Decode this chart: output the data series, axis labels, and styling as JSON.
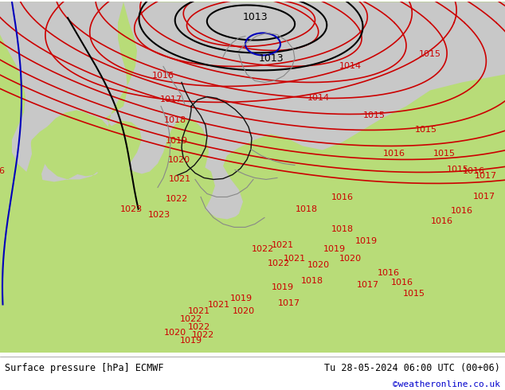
{
  "title_left": "Surface pressure [hPa] ECMWF",
  "title_right": "Tu 28-05-2024 06:00 UTC (00+06)",
  "copyright": "©weatheronline.co.uk",
  "copyright_color": "#0000cc",
  "land_color": "#b8dc78",
  "sea_color": "#c8c8c8",
  "contour_red": "#cc0000",
  "contour_black": "#000000",
  "contour_blue": "#0000bb",
  "border_black": "#111111",
  "border_gray": "#888888",
  "footer_text_color": "#000000",
  "fig_width": 6.34,
  "fig_height": 4.9,
  "dpi": 100
}
